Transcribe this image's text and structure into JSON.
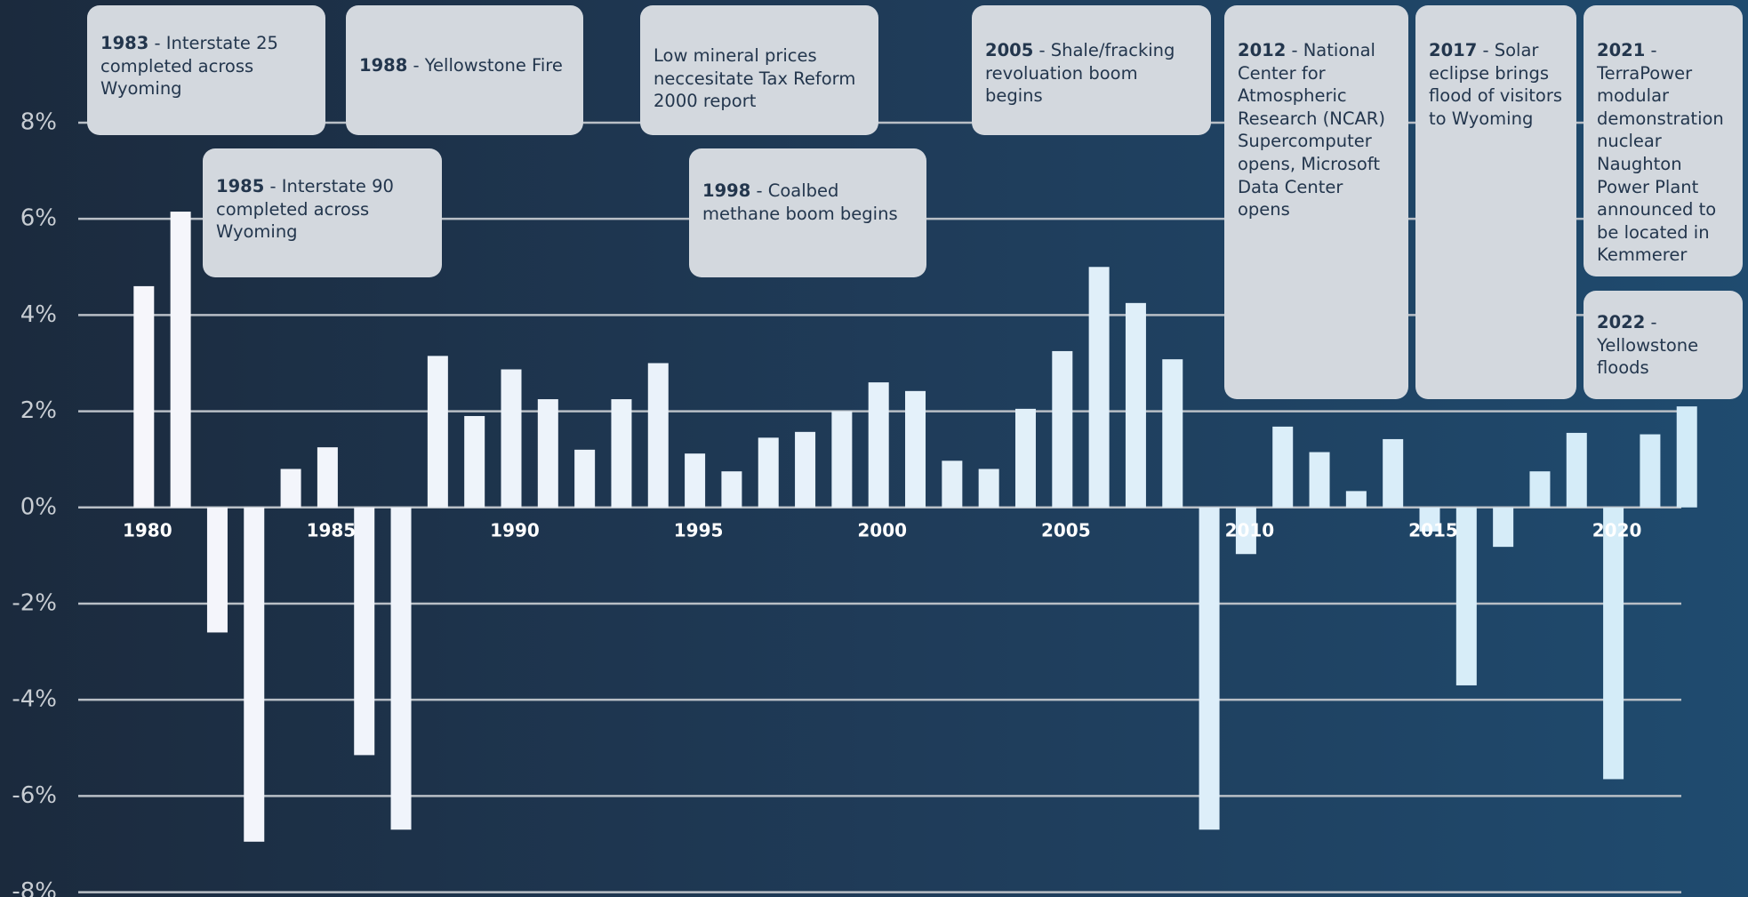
{
  "chart_data": {
    "type": "bar",
    "categories": [
      "1980",
      null,
      null,
      null,
      null,
      "1985",
      null,
      null,
      null,
      null,
      "1990",
      null,
      null,
      null,
      null,
      "1995",
      null,
      null,
      null,
      null,
      "2000",
      null,
      null,
      null,
      null,
      "2005",
      null,
      null,
      null,
      null,
      "2010",
      null,
      null,
      null,
      null,
      "2015",
      null,
      null,
      null,
      null,
      "2020",
      null,
      null
    ],
    "values": [
      4.6,
      6.15,
      -2.6,
      -6.95,
      0.8,
      1.25,
      -5.15,
      -6.7,
      3.15,
      1.9,
      2.87,
      2.25,
      1.2,
      2.25,
      3.0,
      1.12,
      0.75,
      1.45,
      1.57,
      2.0,
      2.6,
      2.42,
      0.97,
      0.8,
      2.05,
      3.25,
      5.0,
      4.25,
      3.08,
      -6.7,
      -0.97,
      1.68,
      1.15,
      0.34,
      1.42,
      -0.5,
      -3.7,
      -0.82,
      0.75,
      1.55,
      -5.65,
      1.52,
      2.1
    ],
    "colors": [
      "#f6f6fb",
      "#d2ebf8"
    ],
    "ylim": [
      -8.1,
      10.55
    ],
    "yticks": [
      {
        "value": 8,
        "label": "8%"
      },
      {
        "value": 6,
        "label": "6%"
      },
      {
        "value": 4,
        "label": "4%"
      },
      {
        "value": 2,
        "label": "2%"
      },
      {
        "value": 0,
        "label": "0%"
      },
      {
        "value": -2,
        "label": "-2%"
      },
      {
        "value": -4,
        "label": "-4%"
      },
      {
        "value": -6,
        "label": "-6%"
      },
      {
        "value": -8,
        "label": "-8%"
      }
    ],
    "grid": true,
    "annotations": [
      {
        "year": "1983",
        "text": "- Interstate 25 completed across Wyoming"
      },
      {
        "year": "1985",
        "text": "- Interstate 90 completed across Wyoming"
      },
      {
        "year": "1988",
        "text": "- Yellowstone Fire"
      },
      {
        "text": "Low mineral prices neccesitate Tax Reform 2000 report"
      },
      {
        "year": "1998",
        "text": "- Coalbed methane boom begins"
      },
      {
        "year": "2005",
        "text": "- Shale/fracking revoluation boom begins"
      },
      {
        "year": "2012",
        "text": "- National Center for Atmospheric Research (NCAR) Supercomputer opens, Microsoft Data Center opens"
      },
      {
        "year": "2017",
        "text": "- Solar eclipse brings flood of visitors to Wyoming"
      },
      {
        "year": "2021",
        "text": "- TerraPower modular demonstration nuclear Naughton Power Plant announced to be located in Kemmerer"
      },
      {
        "year": "2022",
        "text": "- Yellowstone floods"
      }
    ]
  }
}
